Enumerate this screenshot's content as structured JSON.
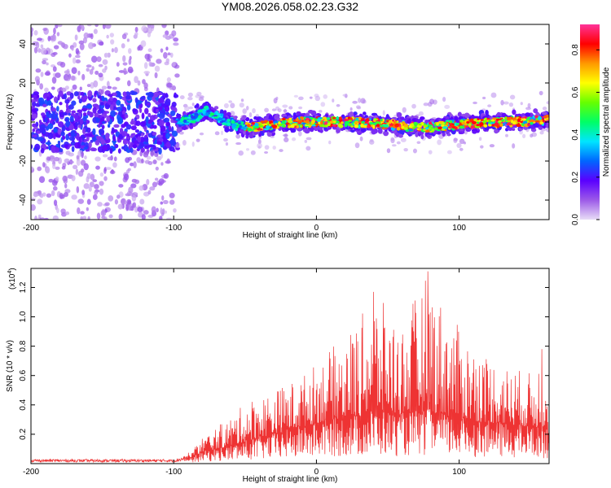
{
  "title": "YM08.2026.058.02.23.G32",
  "chart_data": [
    {
      "type": "heatmap",
      "name": "spectrogram",
      "xlabel": "Height of straight line (km)",
      "ylabel": "Frequency (Hz)",
      "xlim": [
        -200,
        163
      ],
      "ylim": [
        -50,
        50
      ],
      "xticks": [
        -200,
        -100,
        0,
        100
      ],
      "yticks": [
        -40,
        -20,
        0,
        20,
        40
      ],
      "xtick_labels": [
        "-200",
        "-100",
        "0",
        "100"
      ],
      "ytick_labels": [
        "-40",
        "-20",
        "0",
        "20",
        "40"
      ],
      "noise_region_x": [
        -200,
        -97
      ],
      "noise_spread_hz": 50,
      "signal_region_x": [
        -97,
        163
      ],
      "ridge_center_hz": [
        {
          "x": -97,
          "y": 0
        },
        {
          "x": -85,
          "y": 2
        },
        {
          "x": -78,
          "y": 6
        },
        {
          "x": -70,
          "y": 3
        },
        {
          "x": -55,
          "y": -2
        },
        {
          "x": -45,
          "y": -3
        },
        {
          "x": -30,
          "y": -1
        },
        {
          "x": -10,
          "y": 0
        },
        {
          "x": 20,
          "y": 0
        },
        {
          "x": 50,
          "y": -1
        },
        {
          "x": 75,
          "y": -3
        },
        {
          "x": 100,
          "y": -1
        },
        {
          "x": 130,
          "y": 0
        },
        {
          "x": 163,
          "y": 1
        }
      ],
      "ridge_halfwidth_hz": 4,
      "colorbar": {
        "label": "Normalized spectral amplitude",
        "range": [
          0,
          0.92
        ],
        "ticks": [
          0.0,
          0.2,
          0.4,
          0.6,
          0.8
        ],
        "tick_labels": [
          "0.0",
          "0.2",
          "0.4",
          "0.6",
          "0.8"
        ],
        "colors": [
          "#e8dcf6",
          "#9c5ae8",
          "#5a00ff",
          "#0066ff",
          "#00e5ff",
          "#00ff66",
          "#66ff00",
          "#ffff00",
          "#ff9900",
          "#ff0000",
          "#ff3399"
        ]
      }
    },
    {
      "type": "line",
      "name": "snr",
      "xlabel": "Height of straight line (km)",
      "ylabel": "SNR (10 * v/v)",
      "scale_label_base": "(x10",
      "scale_label_exp": "4",
      "scale_label_close": ")",
      "xlim": [
        -200,
        163
      ],
      "ylim": [
        0,
        1.33
      ],
      "xticks": [
        -200,
        -100,
        0,
        100
      ],
      "yticks": [
        0.2,
        0.4,
        0.6,
        0.8,
        1.0,
        1.2
      ],
      "xtick_labels": [
        "-200",
        "-100",
        "0",
        "100"
      ],
      "ytick_labels": [
        "0.2",
        "0.4",
        "0.6",
        "0.8",
        "1.0",
        "1.2"
      ],
      "line_color": "#ee3333",
      "envelope": [
        {
          "x": -200,
          "mean": 0.02,
          "peak": 0.04
        },
        {
          "x": -100,
          "mean": 0.02,
          "peak": 0.04
        },
        {
          "x": -88,
          "mean": 0.04,
          "peak": 0.08
        },
        {
          "x": -80,
          "mean": 0.08,
          "peak": 0.18
        },
        {
          "x": -60,
          "mean": 0.12,
          "peak": 0.32
        },
        {
          "x": -47,
          "mean": 0.16,
          "peak": 0.44
        },
        {
          "x": -30,
          "mean": 0.2,
          "peak": 0.5
        },
        {
          "x": -10,
          "mean": 0.25,
          "peak": 0.6
        },
        {
          "x": 10,
          "mean": 0.3,
          "peak": 0.78
        },
        {
          "x": 30,
          "mean": 0.32,
          "peak": 0.98
        },
        {
          "x": 40,
          "mean": 0.36,
          "peak": 1.17
        },
        {
          "x": 60,
          "mean": 0.33,
          "peak": 0.95
        },
        {
          "x": 78,
          "mean": 0.36,
          "peak": 1.31
        },
        {
          "x": 92,
          "mean": 0.32,
          "peak": 1.02
        },
        {
          "x": 110,
          "mean": 0.29,
          "peak": 0.82
        },
        {
          "x": 130,
          "mean": 0.27,
          "peak": 0.68
        },
        {
          "x": 150,
          "mean": 0.25,
          "peak": 0.62
        },
        {
          "x": 160,
          "mean": 0.24,
          "peak": 0.78
        },
        {
          "x": 163,
          "mean": 0.2,
          "peak": 0.5
        }
      ],
      "labeled_peaks": [
        {
          "x": 40,
          "y": 1.17
        },
        {
          "x": 78,
          "y": 1.31
        },
        {
          "x": 158,
          "y": 0.78
        }
      ]
    }
  ]
}
